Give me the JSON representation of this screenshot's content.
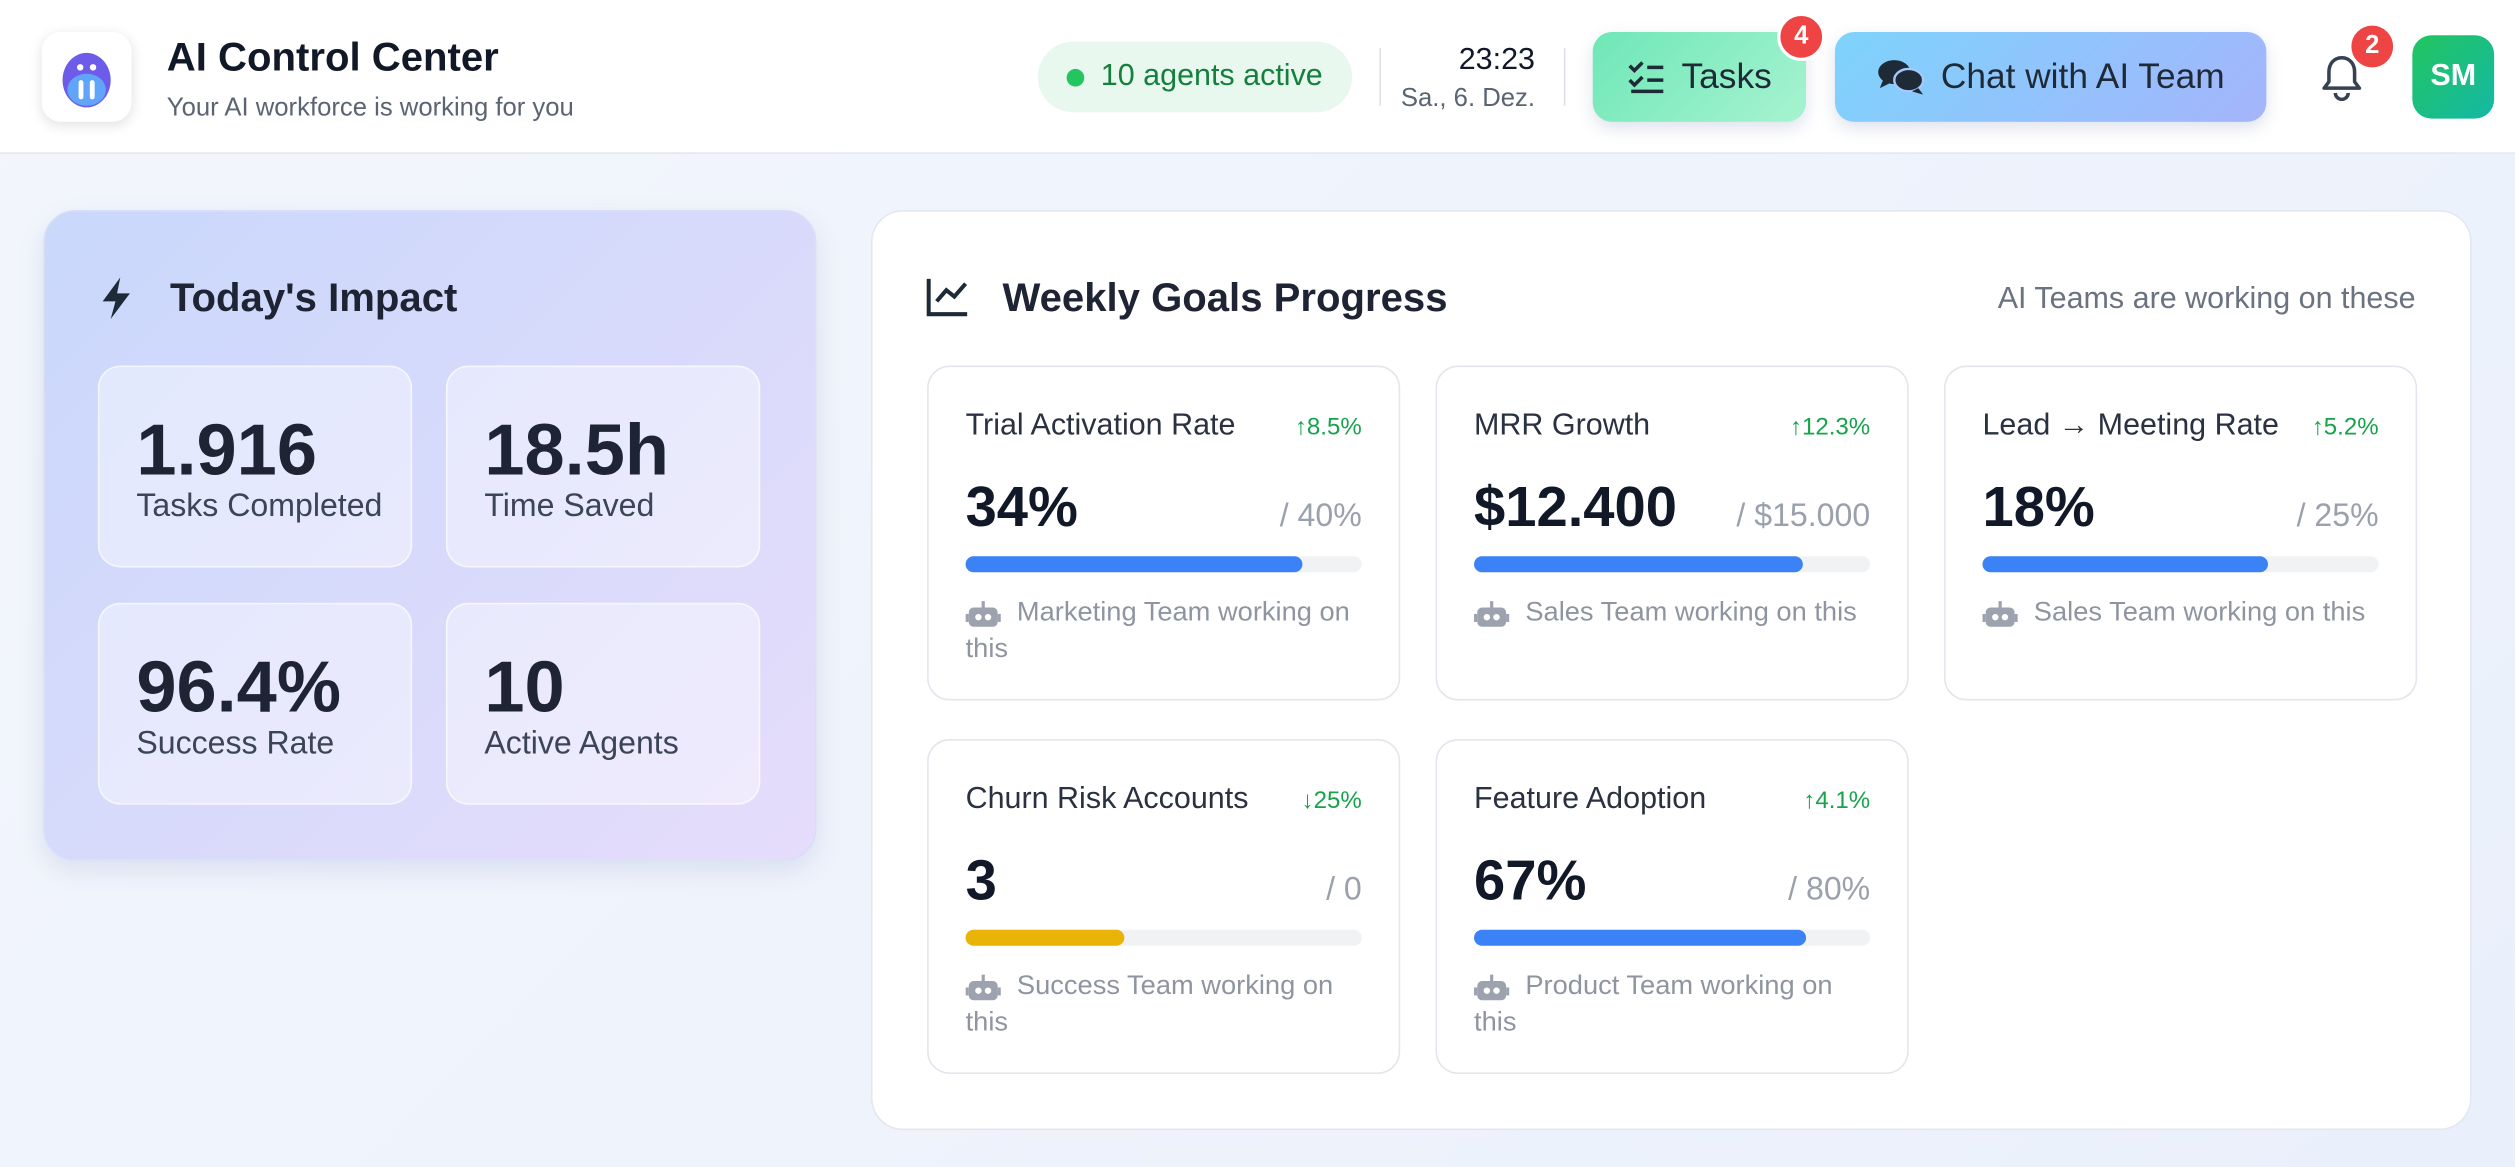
{
  "header": {
    "title": "AI Control Center",
    "subtitle": "Your AI workforce is working for you",
    "status": "10 agents active",
    "time": "23:23",
    "date": "Sa., 6. Dez.",
    "tasks_button": "Tasks",
    "tasks_badge": "4",
    "chat_button": "Chat with AI Team",
    "notifications_badge": "2",
    "avatar": "SM"
  },
  "impact": {
    "title": "Today's Impact",
    "stats": [
      {
        "value": "1.916",
        "label": "Tasks Completed"
      },
      {
        "value": "18.5h",
        "label": "Time Saved"
      },
      {
        "value": "96.4%",
        "label": "Success Rate"
      },
      {
        "value": "10",
        "label": "Active Agents"
      }
    ]
  },
  "goals": {
    "title": "Weekly Goals Progress",
    "subtitle": "AI Teams are working on these",
    "cards": [
      {
        "name": "Trial Activation Rate",
        "change": "↑8.5%",
        "value": "34%",
        "target": "/ 40%",
        "team": "Marketing Team working on this"
      },
      {
        "name": "MRR Growth",
        "change": "↑12.3%",
        "value": "$12.400",
        "target": "/ $15.000",
        "team": "Sales Team working on this"
      },
      {
        "name": "Lead → Meeting Rate",
        "change": "↑5.2%",
        "value": "18%",
        "target": "/ 25%",
        "team": "Sales Team working on this"
      },
      {
        "name": "Churn Risk Accounts",
        "change": "↓25%",
        "value": "3",
        "target": "/ 0",
        "team": "Success Team working on this"
      },
      {
        "name": "Feature Adoption",
        "change": "↑4.1%",
        "value": "67%",
        "target": "/ 80%",
        "team": "Product Team working on this"
      }
    ]
  }
}
